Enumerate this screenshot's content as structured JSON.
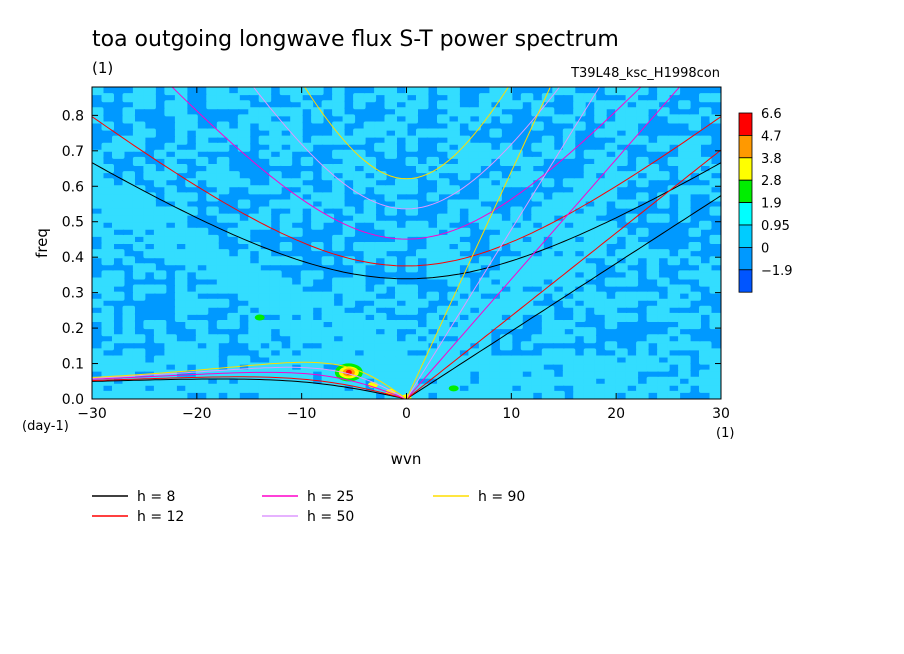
{
  "chart_data": {
    "type": "heatmap",
    "title": "toa outgoing longwave flux S-T power spectrum",
    "subtitle_left": "(1)",
    "subtitle_right": "T39L48_ksc_H1998con",
    "xlabel": "wvn",
    "ylabel": "freq",
    "x_unit": "(1)",
    "y_unit": "(day-1)",
    "xlim": [
      -30,
      30
    ],
    "ylim": [
      0,
      0.88
    ],
    "x_ticks": [
      -30,
      -20,
      -10,
      0,
      10,
      20,
      30
    ],
    "y_ticks": [
      0.0,
      0.1,
      0.2,
      0.3,
      0.4,
      0.5,
      0.6,
      0.7,
      0.8
    ],
    "colorbar": {
      "levels": [
        "6.6",
        "4.7",
        "3.8",
        "2.8",
        "1.9",
        "0.95",
        "0",
        "-1.9"
      ],
      "colors": [
        "#ff0000",
        "#ff9900",
        "#ffff00",
        "#00ee00",
        "#00ffff",
        "#00ccff",
        "#0099ff",
        "#0055ff"
      ]
    },
    "background_level_color": "#0099ff",
    "main_level_color": "#33ddff",
    "features": [
      {
        "x": -5.5,
        "y": 0.075,
        "value": 6.6
      },
      {
        "x": -3.2,
        "y": 0.04,
        "value": 3.8
      },
      {
        "x": -1.5,
        "y": 0.02,
        "value": 2.8
      },
      {
        "x": 0,
        "y": 0.005,
        "value": 2.8
      },
      {
        "x": -14,
        "y": 0.23,
        "value": 1.9
      },
      {
        "x": 4.5,
        "y": 0.03,
        "value": 1.9
      }
    ],
    "series": [
      {
        "name": "h =  8",
        "label": "h =  8",
        "h": 8,
        "color": "#000000"
      },
      {
        "name": "h = 12",
        "label": "h = 12",
        "h": 12,
        "color": "#ff0000"
      },
      {
        "name": "h = 25",
        "label": "h = 25",
        "h": 25,
        "color": "#ff00cc"
      },
      {
        "name": "h = 50",
        "label": "h = 50",
        "h": 50,
        "color": "#dd99ff"
      },
      {
        "name": "h = 90",
        "label": "h = 90",
        "h": 90,
        "color": "#ffdd00"
      }
    ]
  }
}
